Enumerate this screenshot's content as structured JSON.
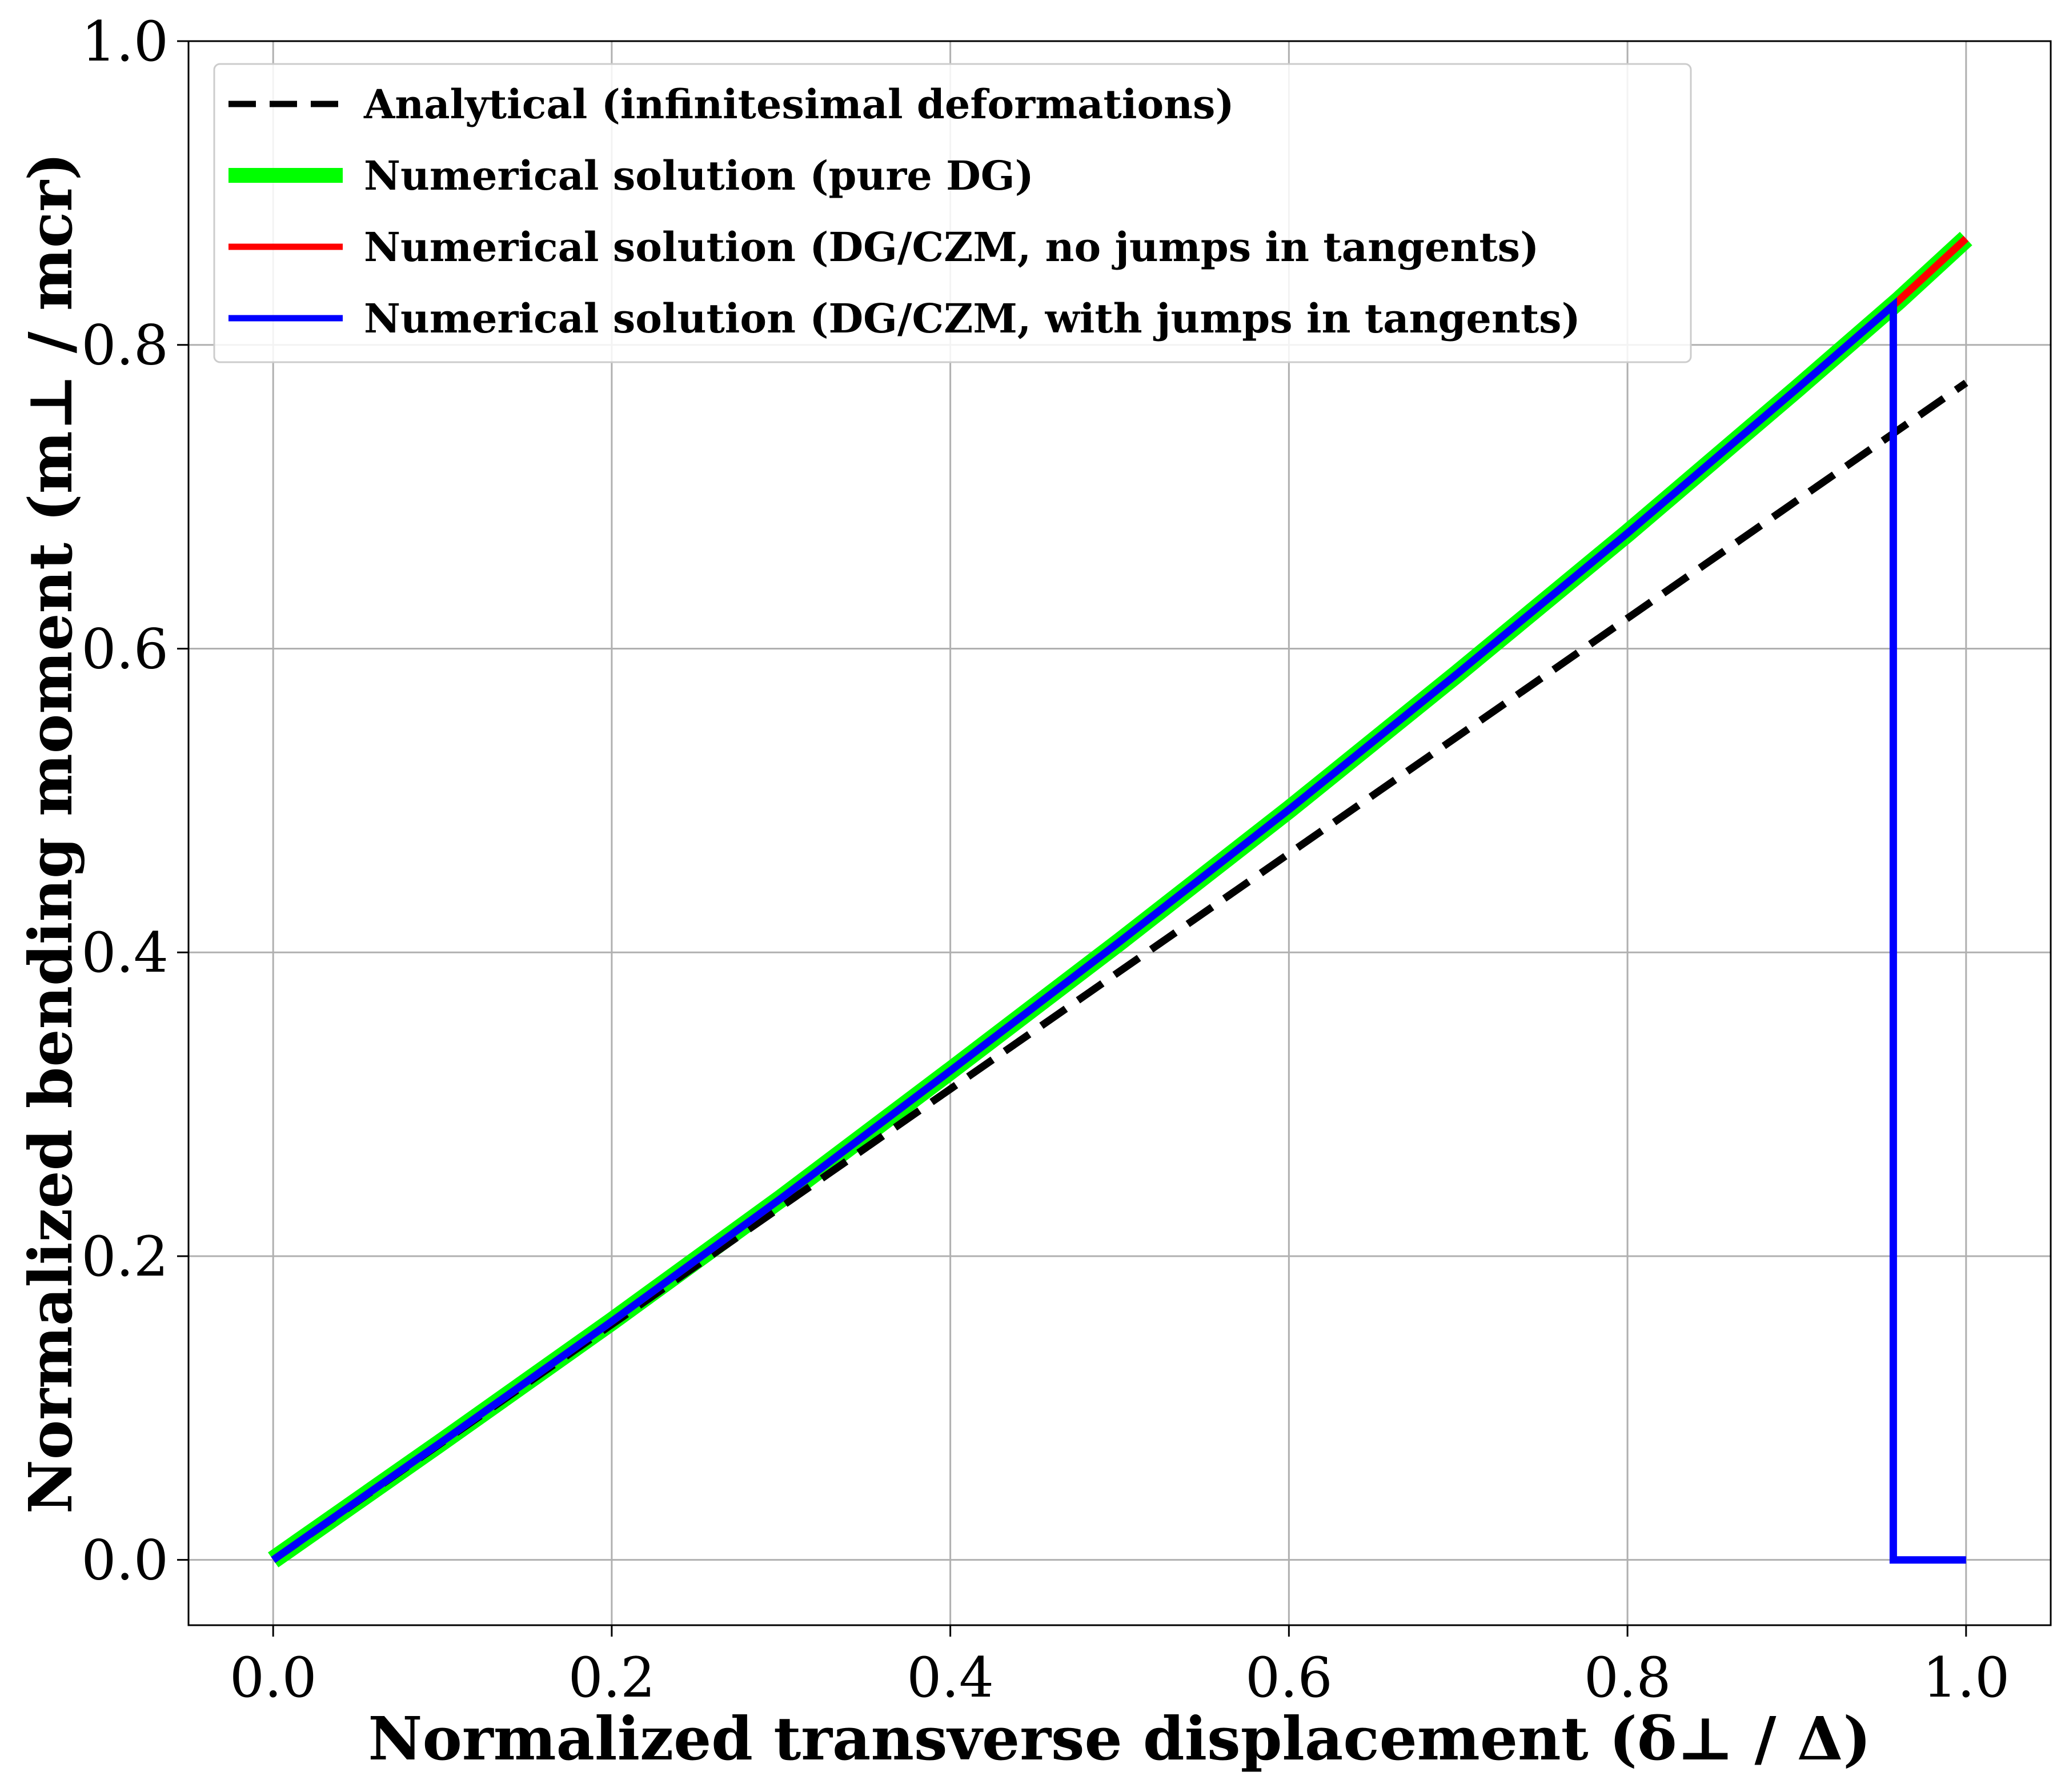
{
  "chart_data": {
    "type": "line",
    "xlabel": "Normalized transverse displacement (δ⊥ / Δ)",
    "ylabel": "Normalized bending moment (m⊥ / mcr)",
    "xlim": [
      -0.05,
      1.05
    ],
    "ylim": [
      -0.043,
      1.0
    ],
    "xticks": [
      0.0,
      0.2,
      0.4,
      0.6,
      0.8,
      1.0
    ],
    "yticks": [
      0.0,
      0.2,
      0.4,
      0.6,
      0.8,
      1.0
    ],
    "xtick_labels": [
      "0.0",
      "0.2",
      "0.4",
      "0.6",
      "0.8",
      "1.0"
    ],
    "ytick_labels": [
      "0.0",
      "0.2",
      "0.4",
      "0.6",
      "0.8",
      "1.0"
    ],
    "grid": true,
    "legend_position": "top-left",
    "series": [
      {
        "name": "Analytical (infinitesimal deformations)",
        "color": "#000000",
        "style": "dashed",
        "x": [
          0.0,
          0.2,
          0.4,
          0.6,
          0.8,
          1.0
        ],
        "y": [
          0.0,
          0.155,
          0.31,
          0.465,
          0.62,
          0.775
        ]
      },
      {
        "name": "Numerical solution (pure DG)",
        "color": "#00ff00",
        "style": "solid-thick",
        "x": [
          0.0,
          0.1,
          0.2,
          0.3,
          0.4,
          0.5,
          0.6,
          0.7,
          0.8,
          0.9,
          0.96,
          1.0
        ],
        "y": [
          0.0,
          0.078,
          0.157,
          0.238,
          0.322,
          0.407,
          0.494,
          0.584,
          0.676,
          0.771,
          0.829,
          0.87
        ]
      },
      {
        "name": "Numerical solution (DG/CZM, no jumps in tangents)",
        "color": "#ff0000",
        "style": "solid",
        "x": [
          0.0,
          0.1,
          0.2,
          0.3,
          0.4,
          0.5,
          0.6,
          0.7,
          0.8,
          0.9,
          0.96,
          1.0
        ],
        "y": [
          0.0,
          0.078,
          0.157,
          0.238,
          0.322,
          0.407,
          0.494,
          0.584,
          0.676,
          0.771,
          0.829,
          0.87
        ]
      },
      {
        "name": "Numerical solution (DG/CZM, with jumps in tangents)",
        "color": "#0000ff",
        "style": "solid",
        "x": [
          0.0,
          0.1,
          0.2,
          0.3,
          0.4,
          0.5,
          0.6,
          0.7,
          0.8,
          0.9,
          0.957,
          0.957,
          1.0
        ],
        "y": [
          0.0,
          0.078,
          0.157,
          0.238,
          0.322,
          0.407,
          0.494,
          0.584,
          0.676,
          0.771,
          0.826,
          0.0,
          0.0
        ]
      }
    ]
  }
}
